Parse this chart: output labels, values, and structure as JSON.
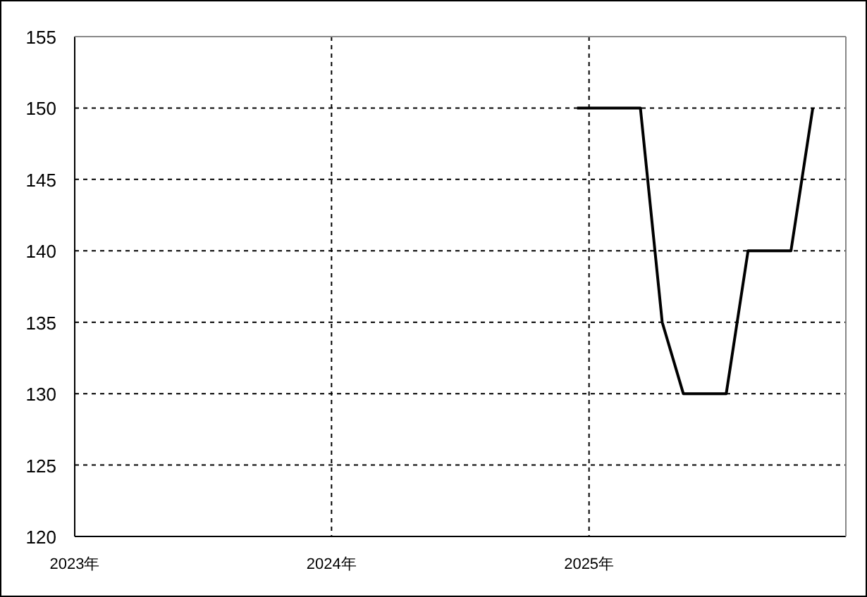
{
  "chart_data": {
    "type": "line",
    "x": [
      "2024-12-15",
      "2025-03-15",
      "2025-04-15",
      "2025-05-15",
      "2025-07-15",
      "2025-08-15",
      "2025-10-15",
      "2025-11-15"
    ],
    "values": [
      150,
      150,
      135,
      130,
      130,
      140,
      140,
      150
    ],
    "color": "#000000",
    "xlim": [
      "2023-01-01",
      "2026-01-01"
    ],
    "xticks": [
      {
        "value": "2023-01-01",
        "label": "2023年"
      },
      {
        "value": "2024-01-01",
        "label": "2024年"
      },
      {
        "value": "2025-01-01",
        "label": "2025年"
      }
    ],
    "ylim": [
      120,
      155
    ],
    "yticks": [
      120,
      125,
      130,
      135,
      140,
      145,
      150,
      155
    ],
    "grid": true
  }
}
